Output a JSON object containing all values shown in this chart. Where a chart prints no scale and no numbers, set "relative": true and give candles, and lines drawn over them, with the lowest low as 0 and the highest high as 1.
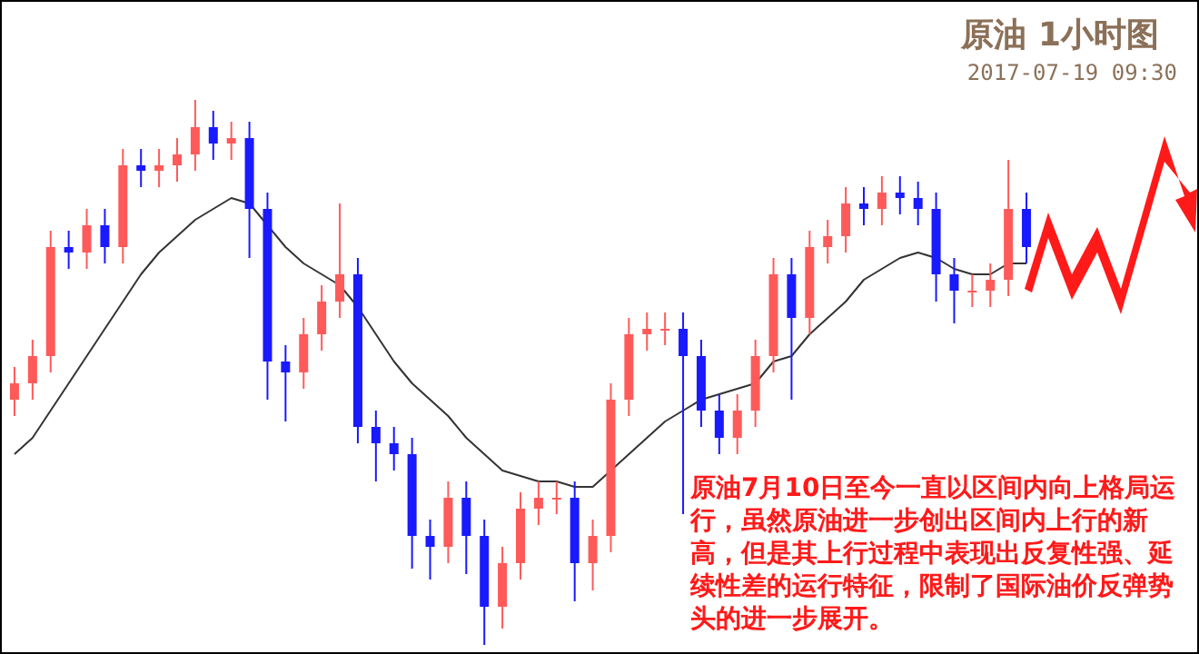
{
  "chart_data": {
    "type": "candlestick",
    "title": "原油 1小时图",
    "subtitle": "2017-07-19 09:30",
    "relative": true,
    "categories": [
      null,
      null,
      null,
      null,
      null,
      null,
      null,
      null,
      null,
      null,
      null,
      null,
      null,
      null,
      null,
      null,
      null,
      null,
      null,
      null,
      null,
      null,
      null,
      null,
      null,
      null,
      null,
      null,
      null,
      null,
      null,
      null,
      null,
      null,
      null,
      null,
      null,
      null,
      null,
      null,
      null,
      null,
      null,
      null,
      null,
      null,
      null,
      null,
      null,
      null,
      null,
      null,
      null,
      null,
      null,
      null,
      null
    ],
    "ohlc": [
      [
        0.45,
        0.51,
        0.42,
        0.48
      ],
      [
        0.48,
        0.56,
        0.45,
        0.53
      ],
      [
        0.53,
        0.76,
        0.5,
        0.73
      ],
      [
        0.73,
        0.76,
        0.69,
        0.72
      ],
      [
        0.72,
        0.8,
        0.69,
        0.77
      ],
      [
        0.77,
        0.8,
        0.7,
        0.73
      ],
      [
        0.73,
        0.91,
        0.7,
        0.88
      ],
      [
        0.88,
        0.91,
        0.84,
        0.87
      ],
      [
        0.87,
        0.91,
        0.84,
        0.88
      ],
      [
        0.88,
        0.93,
        0.85,
        0.9
      ],
      [
        0.9,
        1.0,
        0.87,
        0.95
      ],
      [
        0.95,
        0.98,
        0.89,
        0.92
      ],
      [
        0.92,
        0.96,
        0.89,
        0.93
      ],
      [
        0.93,
        0.96,
        0.71,
        0.8
      ],
      [
        0.8,
        0.83,
        0.45,
        0.52
      ],
      [
        0.52,
        0.55,
        0.41,
        0.5
      ],
      [
        0.5,
        0.6,
        0.47,
        0.57
      ],
      [
        0.57,
        0.66,
        0.54,
        0.63
      ],
      [
        0.63,
        0.81,
        0.6,
        0.68
      ],
      [
        0.68,
        0.71,
        0.37,
        0.4
      ],
      [
        0.4,
        0.43,
        0.3,
        0.37
      ],
      [
        0.37,
        0.4,
        0.32,
        0.35
      ],
      [
        0.35,
        0.38,
        0.14,
        0.2
      ],
      [
        0.2,
        0.23,
        0.12,
        0.18
      ],
      [
        0.18,
        0.3,
        0.15,
        0.27
      ],
      [
        0.27,
        0.3,
        0.13,
        0.2
      ],
      [
        0.2,
        0.23,
        0.0,
        0.07
      ],
      [
        0.07,
        0.18,
        0.03,
        0.15
      ],
      [
        0.15,
        0.28,
        0.12,
        0.25
      ],
      [
        0.25,
        0.3,
        0.22,
        0.27
      ],
      [
        0.27,
        0.3,
        0.24,
        0.27
      ],
      [
        0.27,
        0.3,
        0.08,
        0.15
      ],
      [
        0.15,
        0.23,
        0.1,
        0.2
      ],
      [
        0.2,
        0.48,
        0.17,
        0.45
      ],
      [
        0.45,
        0.6,
        0.42,
        0.57
      ],
      [
        0.57,
        0.61,
        0.54,
        0.58
      ],
      [
        0.58,
        0.61,
        0.55,
        0.58
      ],
      [
        0.58,
        0.61,
        0.24,
        0.53
      ],
      [
        0.53,
        0.56,
        0.4,
        0.43
      ],
      [
        0.43,
        0.46,
        0.35,
        0.38
      ],
      [
        0.38,
        0.46,
        0.35,
        0.43
      ],
      [
        0.43,
        0.56,
        0.4,
        0.53
      ],
      [
        0.53,
        0.71,
        0.5,
        0.68
      ],
      [
        0.68,
        0.71,
        0.45,
        0.6
      ],
      [
        0.6,
        0.76,
        0.57,
        0.73
      ],
      [
        0.73,
        0.78,
        0.7,
        0.75
      ],
      [
        0.75,
        0.84,
        0.72,
        0.81
      ],
      [
        0.81,
        0.84,
        0.77,
        0.8
      ],
      [
        0.8,
        0.86,
        0.77,
        0.83
      ],
      [
        0.83,
        0.86,
        0.79,
        0.82
      ],
      [
        0.82,
        0.85,
        0.77,
        0.8
      ],
      [
        0.8,
        0.83,
        0.63,
        0.68
      ],
      [
        0.68,
        0.71,
        0.59,
        0.65
      ],
      [
        0.65,
        0.68,
        0.62,
        0.65
      ],
      [
        0.65,
        0.7,
        0.62,
        0.67
      ],
      [
        0.67,
        0.89,
        0.64,
        0.8
      ],
      [
        0.8,
        0.83,
        0.7,
        0.73
      ]
    ],
    "series": [
      {
        "type": "line",
        "color": "#333333",
        "values": [
          0.35,
          0.38,
          0.43,
          0.48,
          0.53,
          0.58,
          0.63,
          0.68,
          0.72,
          0.75,
          0.78,
          0.8,
          0.82,
          0.81,
          0.77,
          0.73,
          0.7,
          0.68,
          0.66,
          0.62,
          0.57,
          0.52,
          0.48,
          0.45,
          0.42,
          0.38,
          0.35,
          0.32,
          0.31,
          0.3,
          0.3,
          0.29,
          0.29,
          0.32,
          0.35,
          0.38,
          0.41,
          0.43,
          0.45,
          0.46,
          0.47,
          0.48,
          0.52,
          0.53,
          0.57,
          0.6,
          0.63,
          0.67,
          0.69,
          0.71,
          0.72,
          0.71,
          0.69,
          0.68,
          0.68,
          0.7,
          0.7
        ]
      }
    ],
    "annotations": [
      "原油7月10日至今一直以区间内向上格局运行，虽然原油进一步创出区间内上行的新高，但是其上行过程中表现出反复性强、延续性差的运行特征，限制了国际油价反弹势头的进一步展开。"
    ]
  }
}
